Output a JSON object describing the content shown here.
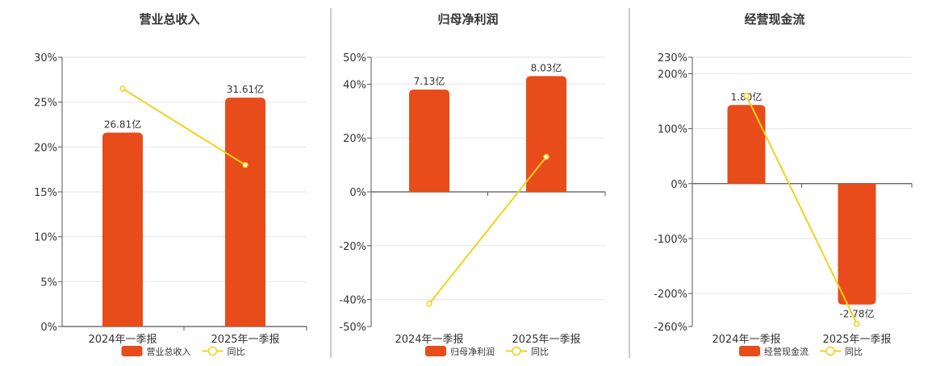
{
  "colors": {
    "bar": "#e84c1a",
    "line": "#f2d21b",
    "axis": "#555555",
    "grid": "#e6e6e6",
    "divider": "#999999",
    "text": "#333333"
  },
  "chart_data": [
    {
      "type": "bar",
      "title": "营业总收入",
      "categories": [
        "2024年一季报",
        "2025年一季报"
      ],
      "series": [
        {
          "name": "营业总收入",
          "type": "bar",
          "axis": "left",
          "values": [
            21.6,
            25.5
          ],
          "labels": [
            "26.81亿",
            "31.61亿"
          ]
        },
        {
          "name": "同比",
          "type": "line",
          "axis": "left",
          "values": [
            26.5,
            18.0
          ]
        }
      ],
      "yticks": [
        0,
        5,
        10,
        15,
        20,
        25,
        30
      ],
      "ytick_labels": [
        "0%",
        "5%",
        "10%",
        "15%",
        "20%",
        "25%",
        "30%"
      ],
      "ylim": [
        0,
        30
      ],
      "grid": true,
      "legend": "bottom-center"
    },
    {
      "type": "bar",
      "title": "归母净利润",
      "categories": [
        "2024年一季报",
        "2025年一季报"
      ],
      "series": [
        {
          "name": "归母净利润",
          "type": "bar",
          "axis": "left",
          "values": [
            38.0,
            43.0
          ],
          "labels": [
            "7.13亿",
            "8.03亿"
          ]
        },
        {
          "name": "同比",
          "type": "line",
          "axis": "left",
          "values": [
            -41.5,
            13.0
          ]
        }
      ],
      "yticks": [
        -50,
        -40,
        -20,
        0,
        20,
        40,
        50
      ],
      "ytick_labels": [
        "-50%",
        "-40%",
        "-20%",
        "0%",
        "20%",
        "40%",
        "50%"
      ],
      "ylim": [
        -50,
        50
      ],
      "grid": true,
      "legend": "bottom-center"
    },
    {
      "type": "bar",
      "title": "经营现金流",
      "categories": [
        "2024年一季报",
        "2025年一季报"
      ],
      "series": [
        {
          "name": "经营现金流",
          "type": "bar",
          "axis": "left",
          "values": [
            143,
            -220
          ],
          "labels": [
            "1.80亿",
            "-2.78亿"
          ]
        },
        {
          "name": "同比",
          "type": "line",
          "axis": "left",
          "values": [
            160,
            -255
          ]
        }
      ],
      "yticks": [
        -260,
        -200,
        -100,
        0,
        100,
        200,
        230
      ],
      "ytick_labels": [
        "-260%",
        "-200%",
        "-100%",
        "0%",
        "100%",
        "200%",
        "230%"
      ],
      "ylim": [
        -260,
        230
      ],
      "grid": true,
      "legend": "bottom-center"
    }
  ]
}
